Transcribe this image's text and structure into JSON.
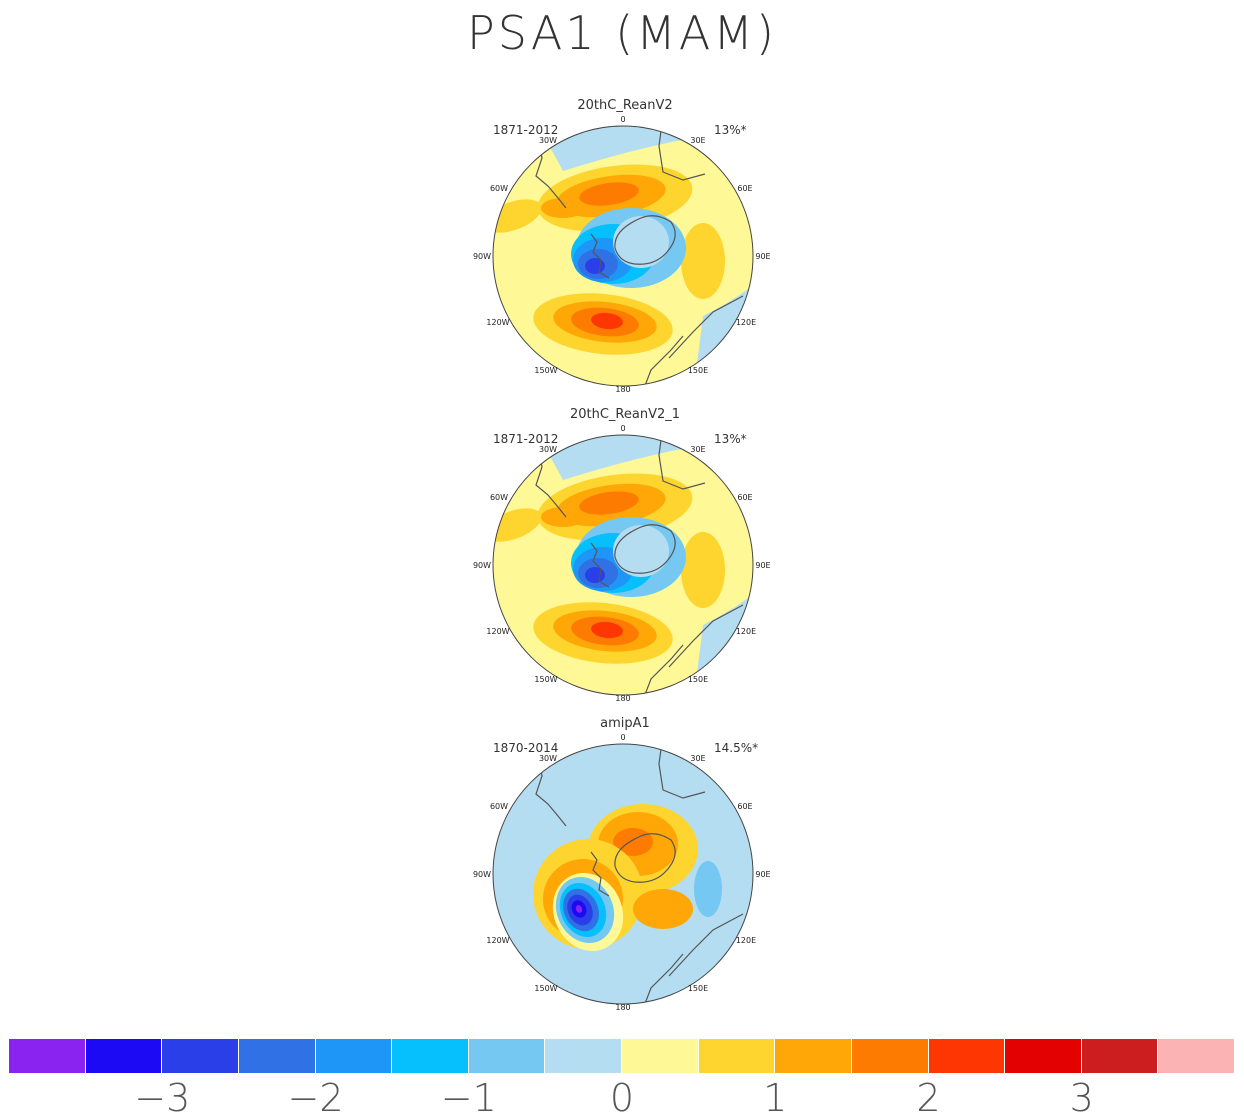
{
  "title": "PSA1 (MAM)",
  "panels": [
    {
      "name": "20thC_ReanV2",
      "period": "1871-2012",
      "percent": "13%*",
      "pattern": "a"
    },
    {
      "name": "20thC_ReanV2_1",
      "period": "1871-2012",
      "percent": "13%*",
      "pattern": "a"
    },
    {
      "name": "amipA1",
      "period": "1870-2014",
      "percent": "14.5%*",
      "pattern": "b"
    }
  ],
  "map_labels": {
    "lon_0": "0",
    "lon_30e": "30E",
    "lon_60e": "60E",
    "lon_90e": "90E",
    "lon_120e": "120E",
    "lon_150e": "150E",
    "lon_180": "180",
    "lon_150w": "150W",
    "lon_120w": "120W",
    "lon_90w": "90W",
    "lon_60w": "60W",
    "lon_30w": "30W"
  },
  "colorbar": {
    "colors": [
      "#8a22f0",
      "#1c0af5",
      "#2a3fe8",
      "#3072e6",
      "#1e96f7",
      "#05c0fc",
      "#74c8f2",
      "#b4ddf1",
      "#fef996",
      "#fed52f",
      "#fea706",
      "#fe7b02",
      "#fe3702",
      "#e40101",
      "#cc1e1e",
      "#fcb3b3"
    ],
    "tick_labels": [
      "−3",
      "−2",
      "−1",
      "0",
      "1",
      "2",
      "3"
    ]
  }
}
